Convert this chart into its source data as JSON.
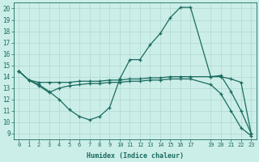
{
  "xlabel": "Humidex (Indice chaleur)",
  "bg_color": "#cceee8",
  "line_color": "#1a6b60",
  "grid_color": "#b0d8d0",
  "xlim": [
    -0.5,
    23.5
  ],
  "ylim": [
    8.5,
    20.5
  ],
  "yticks": [
    9,
    10,
    11,
    12,
    13,
    14,
    15,
    16,
    17,
    18,
    19,
    20
  ],
  "xticks": [
    0,
    1,
    2,
    3,
    4,
    5,
    6,
    7,
    8,
    9,
    10,
    11,
    12,
    13,
    14,
    15,
    16,
    17,
    19,
    20,
    21,
    22,
    23
  ],
  "xtick_labels": [
    "0",
    "1",
    "2",
    "3",
    "4",
    "5",
    "6",
    "7",
    "8",
    "9",
    "10",
    "11",
    "12",
    "13",
    "14",
    "15",
    "16",
    "17",
    "19",
    "20",
    "21",
    "22",
    "23"
  ],
  "line1_x": [
    0,
    1,
    2,
    3,
    4,
    5,
    6,
    7,
    8,
    9,
    10,
    11,
    12,
    13,
    14,
    15,
    16,
    17,
    19,
    20,
    21,
    22,
    23
  ],
  "line1_y": [
    14.5,
    13.7,
    13.3,
    12.7,
    12.0,
    11.1,
    10.5,
    10.2,
    10.5,
    11.3,
    13.8,
    15.5,
    15.5,
    16.8,
    17.8,
    19.2,
    20.1,
    20.1,
    14.0,
    14.1,
    12.7,
    11.0,
    9.0
  ],
  "line2_x": [
    0,
    1,
    2,
    3,
    4,
    5,
    6,
    7,
    8,
    9,
    10,
    11,
    12,
    13,
    14,
    15,
    16,
    17,
    19,
    20,
    21,
    22,
    23
  ],
  "line2_y": [
    14.5,
    13.7,
    13.5,
    13.5,
    13.5,
    13.5,
    13.6,
    13.6,
    13.6,
    13.7,
    13.7,
    13.8,
    13.8,
    13.9,
    13.9,
    14.0,
    14.0,
    14.0,
    14.0,
    14.0,
    13.8,
    13.5,
    9.0
  ],
  "line3_x": [
    0,
    1,
    2,
    3,
    4,
    5,
    6,
    7,
    8,
    9,
    10,
    11,
    12,
    13,
    14,
    15,
    16,
    17,
    19,
    20,
    21,
    22,
    23
  ],
  "line3_y": [
    14.5,
    13.7,
    13.2,
    12.6,
    13.0,
    13.2,
    13.3,
    13.4,
    13.4,
    13.5,
    13.5,
    13.6,
    13.6,
    13.7,
    13.7,
    13.8,
    13.8,
    13.8,
    13.3,
    12.5,
    11.0,
    9.5,
    8.8
  ]
}
